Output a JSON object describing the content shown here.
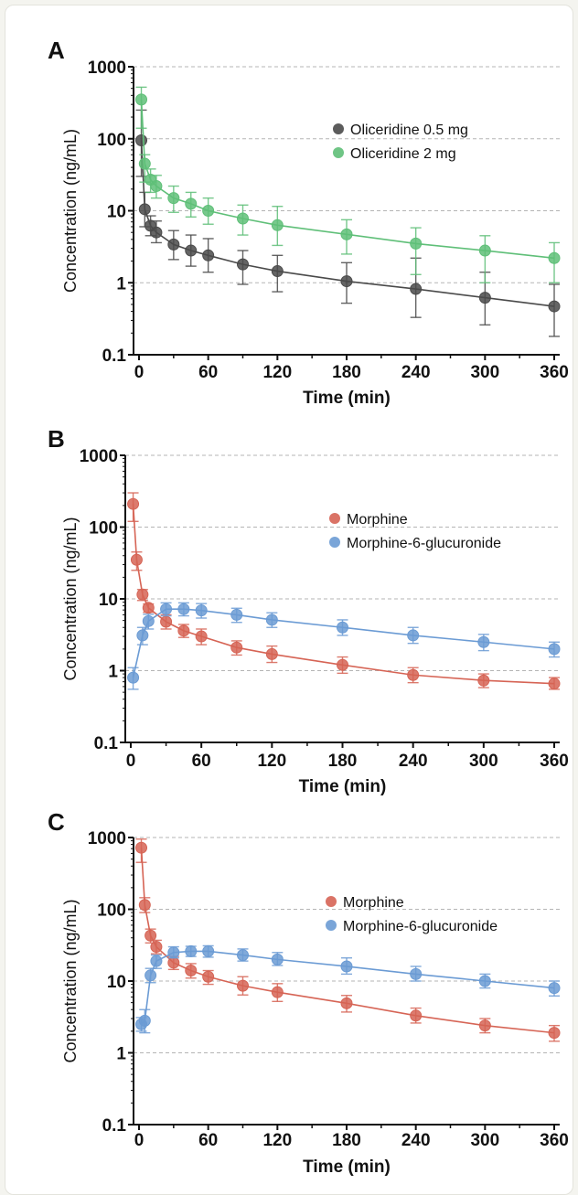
{
  "chart_data": [
    {
      "panel": "A",
      "type": "line",
      "xlabel": "Time (min)",
      "ylabel": "Concentration (ng/mL)",
      "xlim": [
        0,
        360
      ],
      "ylim": [
        0.1,
        1000
      ],
      "yscale": "log",
      "xticks": [
        "0",
        "60",
        "120",
        "180",
        "240",
        "300",
        "360"
      ],
      "yticks": [
        "0.1",
        "1",
        "10",
        "100",
        "1000"
      ],
      "grid": "horizontal dashed at decades",
      "legend": "upper-right",
      "series": [
        {
          "name": "Oliceridine 0.5 mg",
          "color": "#4a4a4a",
          "x": [
            2,
            5,
            10,
            15,
            30,
            45,
            60,
            90,
            120,
            180,
            240,
            300,
            360
          ],
          "y": [
            95,
            10.5,
            6.2,
            5.0,
            3.4,
            2.8,
            2.4,
            1.8,
            1.45,
            1.05,
            0.82,
            0.62,
            0.47
          ],
          "err_low": [
            30,
            6.0,
            4.5,
            3.6,
            2.1,
            1.7,
            1.4,
            0.95,
            0.75,
            0.52,
            0.33,
            0.26,
            0.18
          ],
          "err_high": [
            250,
            18,
            8.5,
            7.2,
            5.3,
            4.6,
            4.1,
            2.8,
            2.4,
            1.9,
            2.2,
            1.4,
            0.95
          ]
        },
        {
          "name": "Oliceridine 2 mg",
          "color": "#5fbf78",
          "x": [
            2,
            5,
            10,
            15,
            30,
            45,
            60,
            90,
            120,
            180,
            240,
            300,
            360
          ],
          "y": [
            350,
            45,
            27,
            22,
            15,
            12.5,
            10,
            7.8,
            6.3,
            4.7,
            3.5,
            2.8,
            2.2
          ],
          "err_low": [
            140,
            25,
            18,
            15,
            9.5,
            8.2,
            6.5,
            4.6,
            3.3,
            2.5,
            1.3,
            1.0,
            1.0
          ],
          "err_high": [
            520,
            60,
            38,
            31,
            22,
            18,
            15,
            12,
            11.5,
            7.5,
            5.8,
            4.5,
            3.6
          ]
        }
      ]
    },
    {
      "panel": "B",
      "type": "line",
      "xlabel": "Time (min)",
      "ylabel": "Concentration (ng/mL)",
      "xlim": [
        0,
        360
      ],
      "ylim": [
        0.1,
        1000
      ],
      "yscale": "log",
      "xticks": [
        "0",
        "60",
        "120",
        "180",
        "240",
        "300",
        "360"
      ],
      "yticks": [
        "0.1",
        "1",
        "10",
        "100",
        "1000"
      ],
      "grid": "horizontal dashed at decades",
      "legend": "upper-right",
      "series": [
        {
          "name": "Morphine",
          "color": "#d66455",
          "x": [
            2,
            5,
            10,
            15,
            30,
            45,
            60,
            90,
            120,
            180,
            240,
            300,
            360
          ],
          "y": [
            210,
            35,
            11.5,
            7.5,
            4.8,
            3.6,
            3.0,
            2.1,
            1.7,
            1.2,
            0.87,
            0.73,
            0.66
          ],
          "err_low": [
            120,
            25,
            9.5,
            6.5,
            3.8,
            2.9,
            2.3,
            1.65,
            1.3,
            0.92,
            0.68,
            0.58,
            0.55
          ],
          "err_high": [
            300,
            45,
            13.5,
            8.5,
            6.0,
            4.4,
            3.8,
            2.6,
            2.2,
            1.55,
            1.1,
            0.9,
            0.8
          ]
        },
        {
          "name": "Morphine-6-glucuronide",
          "color": "#6b9bd4",
          "x": [
            2,
            10,
            15,
            30,
            45,
            60,
            90,
            120,
            180,
            240,
            300,
            360
          ],
          "y": [
            0.8,
            3.1,
            4.9,
            7.2,
            7.2,
            6.9,
            6.0,
            5.1,
            4.0,
            3.1,
            2.5,
            2.0
          ],
          "err_low": [
            0.55,
            2.3,
            3.8,
            5.8,
            5.8,
            5.4,
            4.7,
            4.0,
            3.1,
            2.4,
            1.9,
            1.55
          ],
          "err_high": [
            1.1,
            4.0,
            6.1,
            8.8,
            8.8,
            8.6,
            7.4,
            6.4,
            5.1,
            4.0,
            3.2,
            2.5
          ]
        }
      ]
    },
    {
      "panel": "C",
      "type": "line",
      "xlabel": "Time (min)",
      "ylabel": "Concentration (ng/mL)",
      "xlim": [
        0,
        360
      ],
      "ylim": [
        0.1,
        1000
      ],
      "yscale": "log",
      "xticks": [
        "0",
        "60",
        "120",
        "180",
        "240",
        "300",
        "360"
      ],
      "yticks": [
        "0.1",
        "1",
        "10",
        "100",
        "1000"
      ],
      "grid": "horizontal dashed at decades",
      "legend": "upper-right",
      "series": [
        {
          "name": "Morphine",
          "color": "#d66455",
          "x": [
            2,
            5,
            10,
            15,
            30,
            45,
            60,
            90,
            120,
            180,
            240,
            300,
            360
          ],
          "y": [
            720,
            115,
            43,
            30,
            18,
            14,
            11.5,
            8.6,
            7.0,
            4.9,
            3.3,
            2.4,
            1.9
          ],
          "err_low": [
            450,
            90,
            34,
            24,
            14.5,
            11,
            9.0,
            6.4,
            5.2,
            3.7,
            2.6,
            1.9,
            1.45
          ],
          "err_high": [
            950,
            145,
            53,
            37,
            22,
            17.5,
            14,
            11.5,
            9.2,
            6.3,
            4.2,
            3.0,
            2.4
          ]
        },
        {
          "name": "Morphine-6-glucuronide",
          "color": "#6b9bd4",
          "x": [
            2,
            5,
            10,
            15,
            30,
            45,
            60,
            90,
            120,
            180,
            240,
            300,
            360
          ],
          "y": [
            2.5,
            2.8,
            12,
            19,
            25,
            26,
            26,
            23,
            20,
            16,
            12.5,
            10,
            8.0
          ],
          "err_low": [
            2.0,
            1.9,
            9.5,
            15,
            21,
            22,
            21.5,
            19,
            16.5,
            12.5,
            10,
            8.0,
            6.2
          ],
          "err_high": [
            3.1,
            4.0,
            15,
            23,
            30,
            30.5,
            31,
            28,
            25,
            21,
            16,
            12.5,
            10
          ]
        }
      ]
    }
  ]
}
